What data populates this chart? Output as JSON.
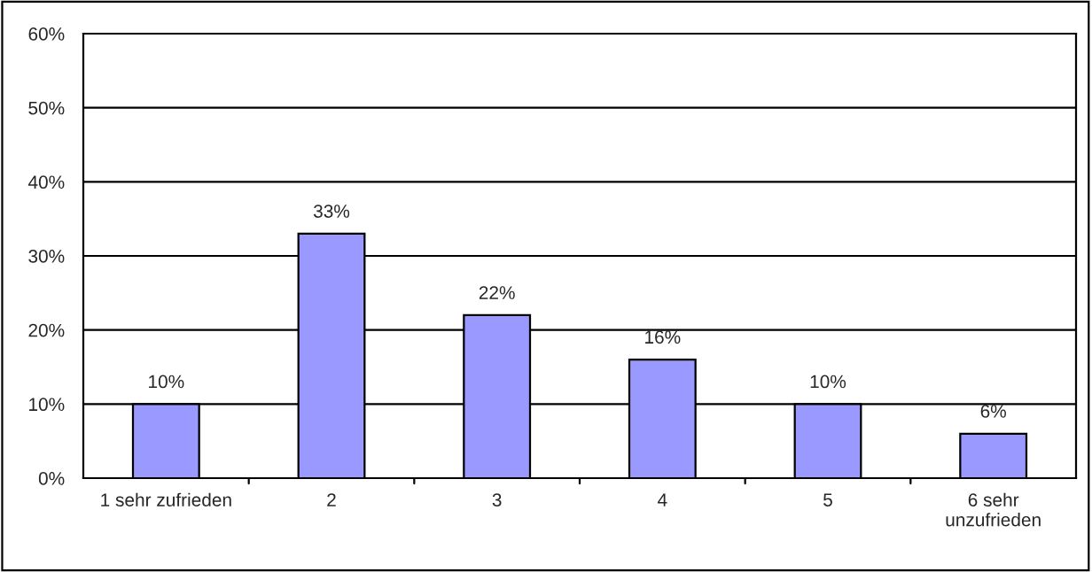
{
  "chart_data": {
    "type": "bar",
    "categories": [
      "1 sehr zufrieden",
      "2",
      "3",
      "4",
      "5",
      "6 sehr\nunzufrieden"
    ],
    "values": [
      10,
      33,
      22,
      16,
      10,
      6
    ],
    "value_labels": [
      "10%",
      "33%",
      "22%",
      "16%",
      "10%",
      "6%"
    ],
    "color": "#9999ff",
    "ylim": [
      0,
      60
    ],
    "yticks": [
      {
        "value": 0,
        "label": "0%"
      },
      {
        "value": 10,
        "label": "10%"
      },
      {
        "value": 20,
        "label": "20%"
      },
      {
        "value": 30,
        "label": "30%"
      },
      {
        "value": 40,
        "label": "40%"
      },
      {
        "value": 50,
        "label": "50%"
      },
      {
        "value": 60,
        "label": "60%"
      }
    ],
    "grid": "y",
    "legend": false
  }
}
